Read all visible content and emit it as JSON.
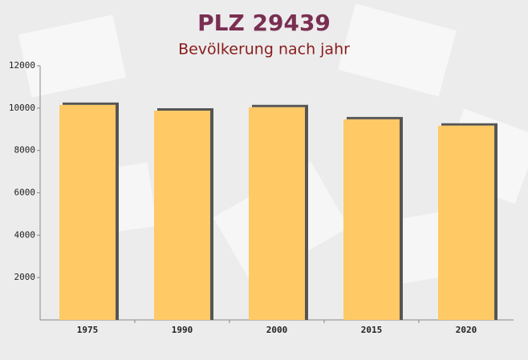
{
  "chart_data": {
    "type": "bar",
    "title": "PLZ 29439",
    "subtitle": "Bevölkerung nach jahr",
    "categories": [
      "1975",
      "1990",
      "2000",
      "2015",
      "2020"
    ],
    "values": [
      10150,
      9880,
      10040,
      9470,
      9170
    ],
    "color": "#ffc965",
    "ylim": [
      0,
      12000
    ],
    "yticks": [
      2000,
      4000,
      6000,
      8000,
      10000,
      12000
    ],
    "grid": false
  }
}
